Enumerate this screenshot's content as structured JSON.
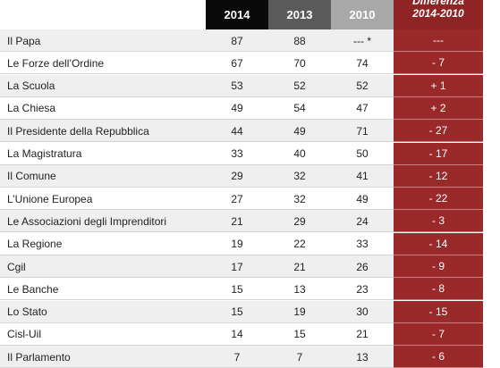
{
  "table": {
    "header": [
      "2014",
      "2013",
      "2010"
    ],
    "diff_header": [
      "Differenza",
      "2014-2010"
    ],
    "rows": [
      [
        "Il Papa",
        87,
        88,
        "--- *",
        "---"
      ],
      [
        "Le Forze dell’Ordine",
        67,
        70,
        74,
        "- 7"
      ],
      [
        "La Scuola",
        53,
        52,
        52,
        "+ 1"
      ],
      [
        "La Chiesa",
        49,
        54,
        47,
        "+ 2"
      ],
      [
        "Il Presidente della Repubblica",
        44,
        49,
        71,
        "- 27"
      ],
      [
        "La Magistratura",
        33,
        40,
        50,
        "- 17"
      ],
      [
        "Il Comune",
        29,
        32,
        41,
        "- 12"
      ],
      [
        "L’Unione Europea",
        27,
        32,
        49,
        "- 22"
      ],
      [
        "Le Associazioni degli Imprenditori",
        21,
        29,
        24,
        "- 3"
      ],
      [
        "La Regione",
        19,
        22,
        33,
        "- 14"
      ],
      [
        "Cgil",
        17,
        21,
        26,
        "- 9"
      ],
      [
        "Le Banche",
        15,
        13,
        23,
        "- 8"
      ],
      [
        "Lo Stato",
        15,
        19,
        30,
        "- 15"
      ],
      [
        "Cisl-Uil",
        14,
        15,
        21,
        "- 7"
      ],
      [
        "Il Parlamento",
        7,
        7,
        13,
        "- 6"
      ]
    ]
  }
}
